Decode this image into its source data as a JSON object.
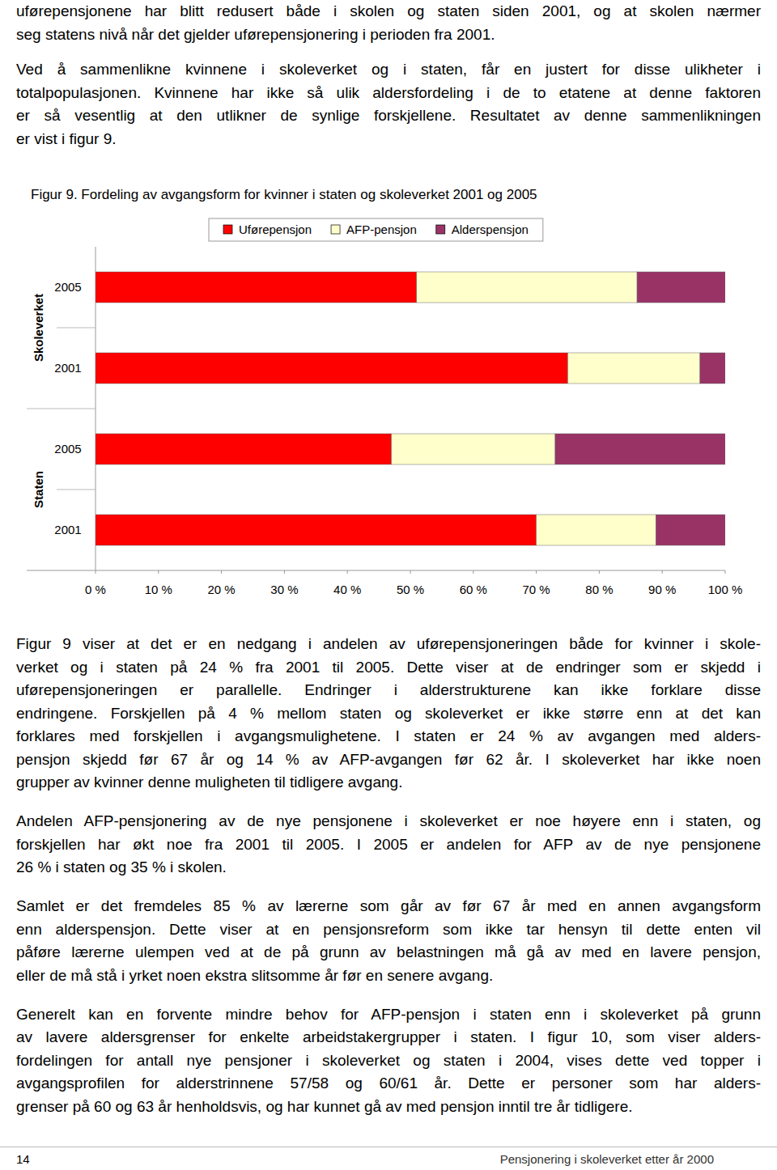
{
  "page": {
    "paragraphs_before": [
      [
        "uførepensjonene har blitt redusert både i skolen og staten siden 2001, og at skolen nærmer",
        "seg statens nivå når det gjelder uførepensjonering i perioden fra 2001."
      ],
      [
        "Ved å sammenlikne kvinnene i skoleverket og i staten, får en justert for disse ulikheter i",
        "totalpopulasjonen. Kvinnene har ikke så ulik aldersfordeling i de to etatene at denne faktoren",
        "er så vesentlig at den utlikner de synlige forskjellene. Resultatet av denne sammenlikningen",
        "er vist i figur 9."
      ]
    ],
    "paragraphs_after": [
      [
        "Figur 9 viser at det er en nedgang i andelen av uførepensjoneringen både for kvinner i skole-",
        "verket og i staten på 24 % fra 2001 til 2005. Dette viser at de endringer som er skjedd i",
        "uførepensjoneringen er parallelle. Endringer i alderstrukturene kan ikke forklare disse",
        "endringene. Forskjellen på 4 % mellom staten og skoleverket er ikke større enn at det kan",
        "forklares med forskjellen i avgangsmulighetene. I staten er 24 % av avgangen med alders-",
        "pensjon skjedd før 67 år og 14 % av AFP-avgangen før 62 år. I skoleverket har ikke noen",
        "grupper av kvinner denne muligheten til tidligere avgang."
      ],
      [
        "Andelen AFP-pensjonering av de nye pensjonene i skoleverket er noe høyere enn i staten, og",
        "forskjellen har økt noe fra 2001 til 2005. I 2005 er andelen for AFP av de nye pensjonene",
        "26 % i staten og 35 % i skolen."
      ],
      [
        "Samlet er det fremdeles 85 % av lærerne som går av før 67 år med en annen avgangsform",
        "enn alderspensjon. Dette viser at en pensjonsreform som ikke tar hensyn til dette enten vil",
        "påføre lærerne ulempen ved at de på grunn av belastningen må gå av med en lavere pensjon,",
        "eller de må stå i yrket noen ekstra slitsomme år før en senere avgang."
      ],
      [
        "Generelt kan en forvente mindre behov for AFP-pensjon i staten enn i skoleverket på grunn",
        "av lavere aldersgrenser for enkelte arbeidstakergrupper i staten. I figur 10, som viser alders-",
        "fordelingen for antall nye pensjoner i skoleverket og staten i 2004, vises dette ved topper i",
        "avgangsprofilen for alderstrinnene 57/58 og 60/61 år. Dette er personer som har alders-",
        "grenser på 60 og 63 år henholdsvis, og har kunnet gå av med pensjon inntil tre år tidligere."
      ]
    ],
    "footer": {
      "page_number": 14,
      "title": "Pensjonering i skoleverket etter år 2000"
    }
  },
  "chart_data": {
    "type": "bar",
    "title": "Figur 9. Fordeling av avgangsform for kvinner i staten og skoleverket 2001 og 2005",
    "orientation": "horizontal",
    "stacked": true,
    "grid": false,
    "legend": "top",
    "categories": [
      "2005",
      "2001",
      "2005",
      "2001"
    ],
    "groups": [
      "Skoleverket",
      "Staten"
    ],
    "series": [
      {
        "name": "Uførepensjon",
        "color": "#ff0000",
        "values": [
          51,
          75,
          47,
          70
        ]
      },
      {
        "name": "AFP-pensjon",
        "color": "#ffffcc",
        "values": [
          35,
          21,
          26,
          19
        ]
      },
      {
        "name": "Alderspensjon",
        "color": "#993366",
        "values": [
          14,
          4,
          27,
          11
        ]
      }
    ],
    "xlim": [
      0,
      100
    ],
    "xticks": [
      {
        "value": 0,
        "label": "0 %"
      },
      {
        "value": 10,
        "label": "10 %"
      },
      {
        "value": 20,
        "label": "20 %"
      },
      {
        "value": 30,
        "label": "30 %"
      },
      {
        "value": 40,
        "label": "40 %"
      },
      {
        "value": 50,
        "label": "50 %"
      },
      {
        "value": 60,
        "label": "60 %"
      },
      {
        "value": 70,
        "label": "70 %"
      },
      {
        "value": 80,
        "label": "80 %"
      },
      {
        "value": 90,
        "label": "90 %"
      },
      {
        "value": 100,
        "label": "100 %"
      }
    ]
  }
}
